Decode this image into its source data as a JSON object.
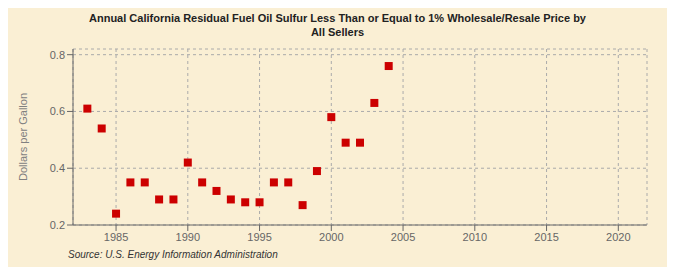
{
  "chart_data": {
    "type": "scatter",
    "title": "Annual California Residual Fuel Oil Sulfur Less Than or Equal to 1% Wholesale/Resale Price by\nAll Sellers",
    "y_label": "Dollars per Gallon",
    "annotations": [
      "Source: U.S. Energy Information Administration"
    ],
    "x": [
      1983,
      1984,
      1985,
      1986,
      1987,
      1988,
      1989,
      1990,
      1991,
      1992,
      1993,
      1994,
      1995,
      1996,
      1997,
      1998,
      1999,
      2000,
      2001,
      2002,
      2003,
      2004
    ],
    "values": [
      0.61,
      0.54,
      0.24,
      0.35,
      0.35,
      0.29,
      0.29,
      0.42,
      0.35,
      0.32,
      0.29,
      0.28,
      0.28,
      0.35,
      0.35,
      0.27,
      0.39,
      0.58,
      0.49,
      0.49,
      0.63,
      0.76
    ],
    "color": "#cc0000",
    "marker": "square",
    "xlim": [
      1982,
      2022
    ],
    "ylim": [
      0.2,
      0.82
    ],
    "xticks": [
      1985,
      1990,
      1995,
      2000,
      2005,
      2010,
      2015,
      2020
    ],
    "yticks": [
      0.2,
      0.4,
      0.6,
      0.8
    ],
    "grid": true
  }
}
